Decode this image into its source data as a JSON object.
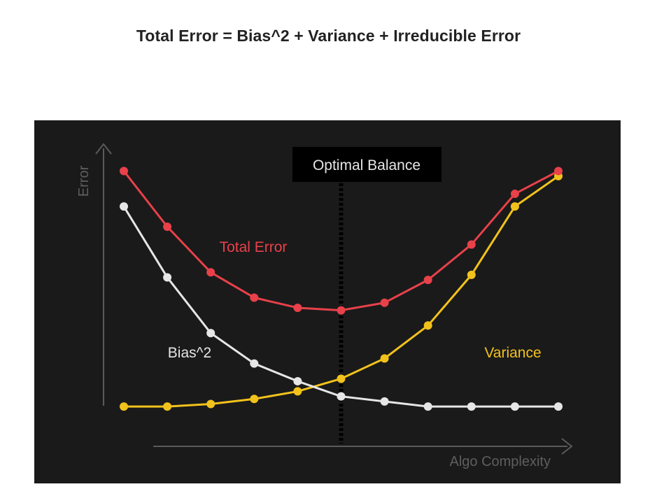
{
  "page": {
    "title": "Total Error = Bias^2 + Variance + Irreducible Error"
  },
  "chart_data": {
    "type": "line",
    "xlabel": "Algo Complexity",
    "ylabel": "Error",
    "grid": false,
    "legend": "none",
    "x": [
      1,
      2,
      3,
      4,
      5,
      6,
      7,
      8,
      9,
      10,
      11
    ],
    "series": [
      {
        "name": "Total Error",
        "color": "#e8414a",
        "values": [
          0.96,
          0.74,
          0.56,
          0.46,
          0.42,
          0.41,
          0.44,
          0.53,
          0.67,
          0.87,
          0.96
        ]
      },
      {
        "name": "Bias^2",
        "color": "#e6e6e6",
        "values": [
          0.82,
          0.54,
          0.32,
          0.2,
          0.13,
          0.07,
          0.05,
          0.03,
          0.03,
          0.03,
          0.03
        ]
      },
      {
        "name": "Variance",
        "color": "#f2c21c",
        "values": [
          0.03,
          0.03,
          0.04,
          0.06,
          0.09,
          0.14,
          0.22,
          0.35,
          0.55,
          0.82,
          0.94
        ]
      }
    ],
    "annotations": [
      {
        "text": "Optimal Balance",
        "x": 6,
        "kind": "vertical-dotted-line"
      }
    ],
    "colors": {
      "background": "#1a1a1a",
      "axis": "#5a5a5a",
      "axis_label": "#5e5e5e",
      "annotation_box": "#000000",
      "annotation_text": "#e6e6e6",
      "optimal_line": "#000000"
    }
  }
}
